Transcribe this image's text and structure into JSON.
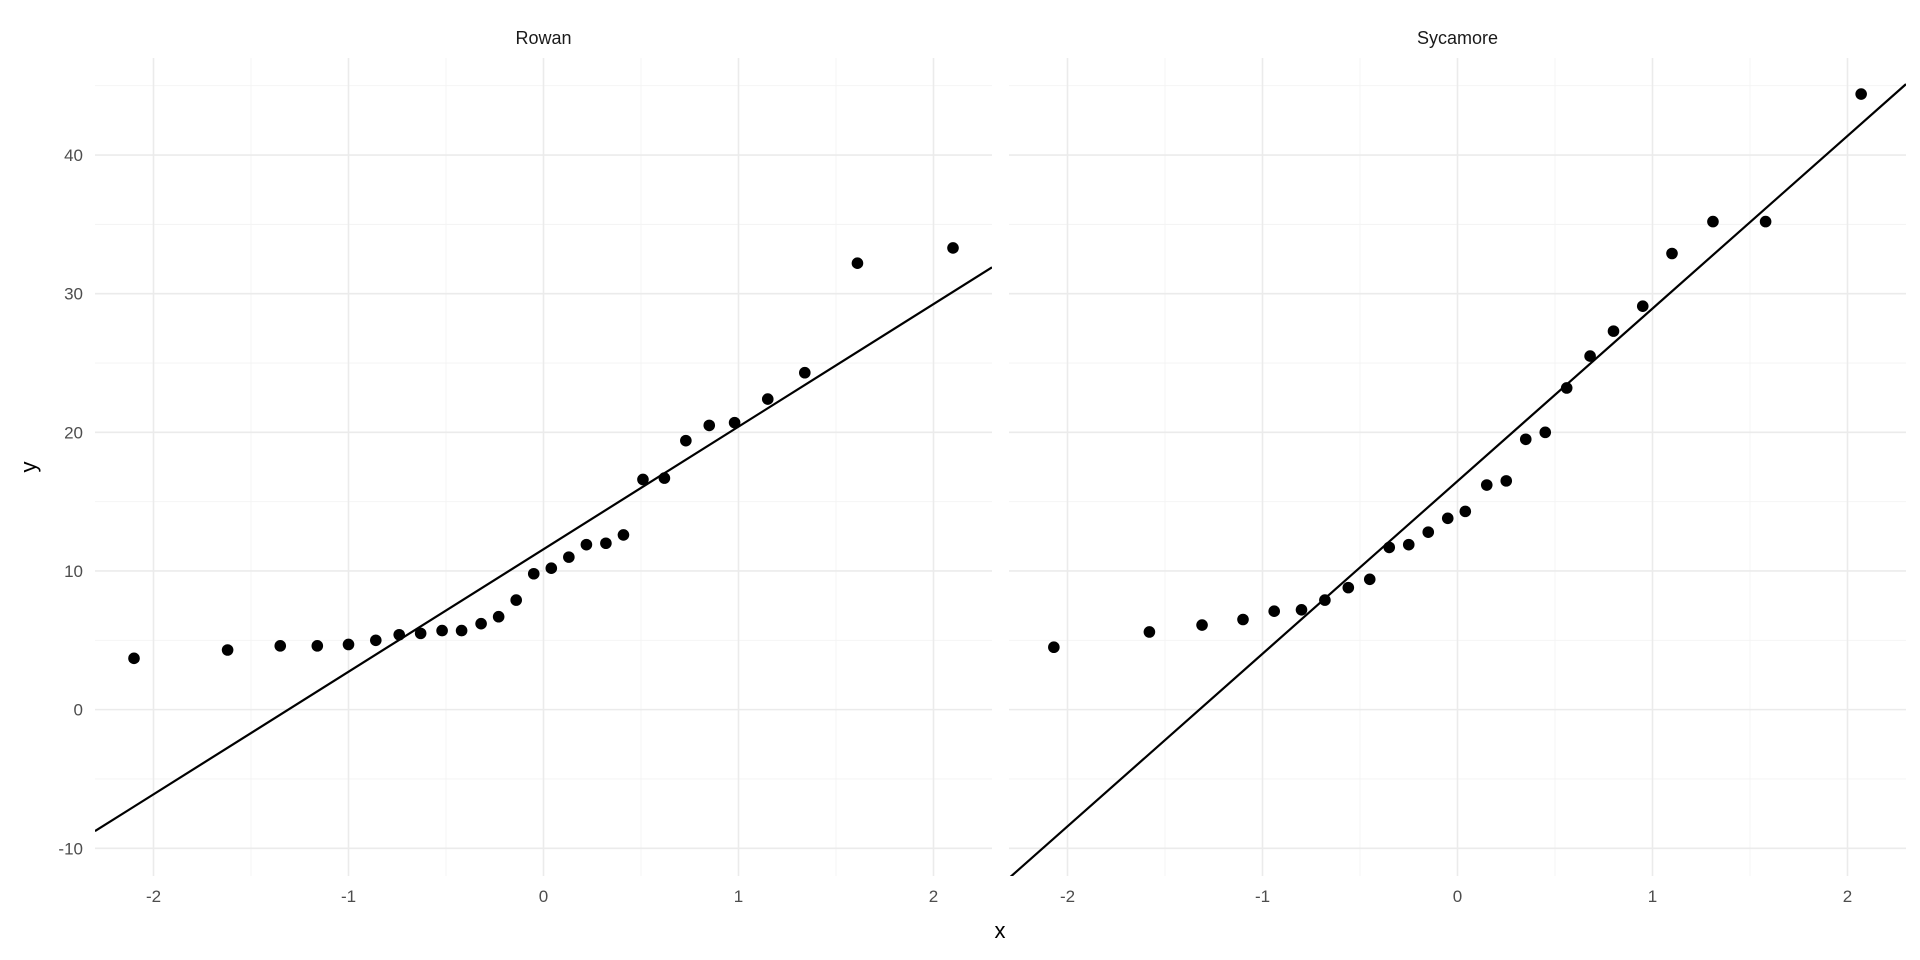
{
  "chart_data": {
    "type": "scatter",
    "xlabel": "x",
    "ylabel": "y",
    "xlim": [
      -2.3,
      2.3
    ],
    "ylim": [
      -12,
      47
    ],
    "x_ticks": [
      -2,
      -1,
      0,
      1,
      2
    ],
    "y_ticks": [
      -10,
      0,
      10,
      20,
      30,
      40
    ],
    "grid": true,
    "point_color": "#000000",
    "line_color": "#000000",
    "panels": [
      {
        "title": "Rowan",
        "line": {
          "intercept": 11.57,
          "slope": 8.84
        },
        "points": [
          [
            -2.1,
            3.7
          ],
          [
            -1.62,
            4.3
          ],
          [
            -1.35,
            4.6
          ],
          [
            -1.16,
            4.6
          ],
          [
            -1.0,
            4.7
          ],
          [
            -0.86,
            5.0
          ],
          [
            -0.74,
            5.4
          ],
          [
            -0.63,
            5.5
          ],
          [
            -0.52,
            5.7
          ],
          [
            -0.42,
            5.7
          ],
          [
            -0.32,
            6.2
          ],
          [
            -0.23,
            6.7
          ],
          [
            -0.14,
            7.9
          ],
          [
            -0.05,
            9.8
          ],
          [
            0.04,
            10.2
          ],
          [
            0.13,
            11.0
          ],
          [
            0.22,
            11.9
          ],
          [
            0.32,
            12.0
          ],
          [
            0.41,
            12.6
          ],
          [
            0.51,
            16.6
          ],
          [
            0.62,
            16.7
          ],
          [
            0.73,
            19.4
          ],
          [
            0.85,
            20.5
          ],
          [
            0.98,
            20.7
          ],
          [
            1.15,
            22.4
          ],
          [
            1.34,
            24.3
          ],
          [
            1.61,
            32.2
          ],
          [
            2.1,
            33.3
          ]
        ]
      },
      {
        "title": "Sycamore",
        "line": {
          "intercept": 16.48,
          "slope": 12.45
        },
        "points": [
          [
            -2.07,
            4.5
          ],
          [
            -1.58,
            5.6
          ],
          [
            -1.31,
            6.1
          ],
          [
            -1.1,
            6.5
          ],
          [
            -0.94,
            7.1
          ],
          [
            -0.8,
            7.2
          ],
          [
            -0.68,
            7.9
          ],
          [
            -0.56,
            8.8
          ],
          [
            -0.45,
            9.4
          ],
          [
            -0.35,
            11.7
          ],
          [
            -0.25,
            11.9
          ],
          [
            -0.15,
            12.8
          ],
          [
            -0.05,
            13.8
          ],
          [
            0.04,
            14.3
          ],
          [
            0.15,
            16.2
          ],
          [
            0.25,
            16.5
          ],
          [
            0.35,
            19.5
          ],
          [
            0.45,
            20.0
          ],
          [
            0.56,
            23.2
          ],
          [
            0.68,
            25.5
          ],
          [
            0.8,
            27.3
          ],
          [
            0.95,
            29.1
          ],
          [
            1.1,
            32.9
          ],
          [
            1.31,
            35.2
          ],
          [
            1.58,
            35.2
          ],
          [
            2.07,
            44.4
          ]
        ]
      }
    ]
  }
}
